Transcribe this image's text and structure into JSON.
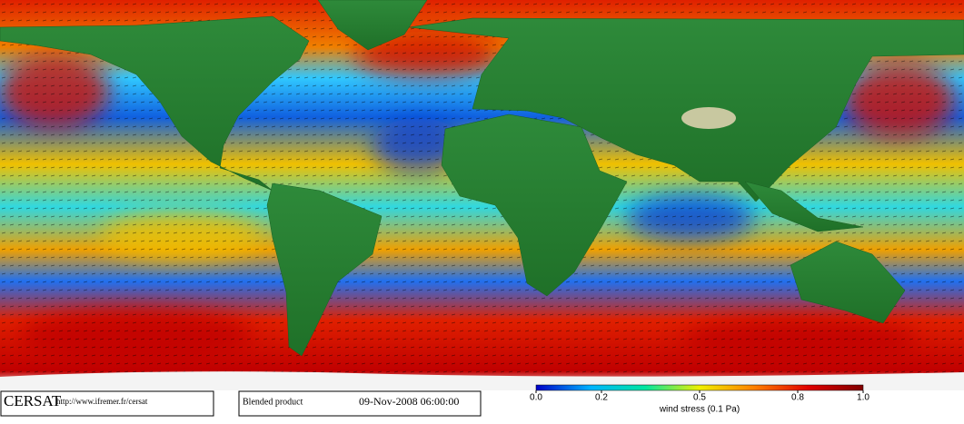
{
  "footer": {
    "logo": "CERSAT",
    "url": "http://www.ifremer.fr/cersat",
    "product": "Blended product",
    "date": "09-Nov-2008 06:00:00"
  },
  "colorbar": {
    "label": "wind stress (0.1 Pa)",
    "lim": [
      0,
      1
    ],
    "ticks": [
      {
        "value": 0,
        "label": "0.0"
      },
      0.2,
      0.5,
      0.8,
      {
        "value": 1,
        "label": "1.0"
      }
    ],
    "colors": [
      "#0000c8",
      "#00b4ff",
      "#00e6a0",
      "#f0f000",
      "#ff8000",
      "#e00000",
      "#800000"
    ]
  }
}
